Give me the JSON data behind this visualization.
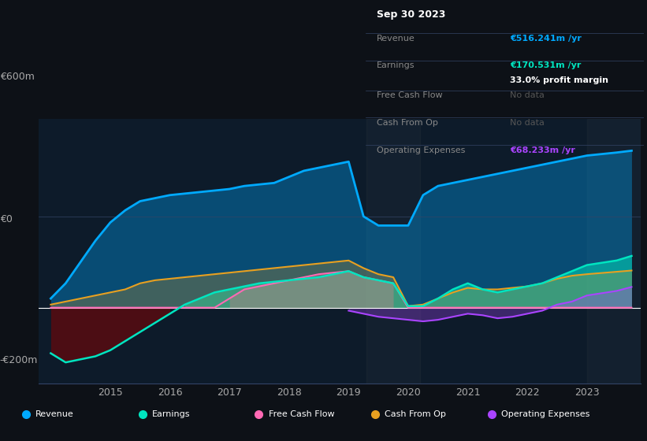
{
  "bg_color": "#0d1117",
  "plot_bg_color": "#0d1b2a",
  "title": "Sep 30 2023",
  "ylabel_600": "€600m",
  "ylabel_0": "€0",
  "ylabel_n200": "-€200m",
  "xlabel_ticks": [
    2015,
    2016,
    2017,
    2018,
    2019,
    2020,
    2021,
    2022,
    2023
  ],
  "legend_items": [
    "Revenue",
    "Earnings",
    "Free Cash Flow",
    "Cash From Op",
    "Operating Expenses"
  ],
  "legend_colors": [
    "#00aaff",
    "#00e5c0",
    "#ff69b4",
    "#e8a020",
    "#aa44ff"
  ],
  "info_box": {
    "date": "Sep 30 2023",
    "revenue_val": "€516.241m /yr",
    "revenue_color": "#00aaff",
    "earnings_val": "€170.531m /yr",
    "earnings_color": "#00e5c0",
    "profit_margin": "33.0% profit margin",
    "free_cash_flow": "No data",
    "cash_from_op": "No data",
    "op_expenses_val": "€68.233m /yr",
    "op_expenses_color": "#aa44ff"
  },
  "years": [
    2014.0,
    2014.25,
    2014.5,
    2014.75,
    2015.0,
    2015.25,
    2015.5,
    2015.75,
    2016.0,
    2016.25,
    2016.5,
    2016.75,
    2017.0,
    2017.25,
    2017.5,
    2017.75,
    2018.0,
    2018.25,
    2018.5,
    2018.75,
    2019.0,
    2019.25,
    2019.5,
    2019.75,
    2020.0,
    2020.25,
    2020.5,
    2020.75,
    2021.0,
    2021.25,
    2021.5,
    2021.75,
    2022.0,
    2022.25,
    2022.5,
    2022.75,
    2023.0,
    2023.5,
    2023.75
  ],
  "revenue": [
    30,
    80,
    150,
    220,
    280,
    320,
    350,
    360,
    370,
    375,
    380,
    385,
    390,
    400,
    405,
    410,
    430,
    450,
    460,
    470,
    480,
    300,
    270,
    270,
    270,
    370,
    400,
    410,
    420,
    430,
    440,
    450,
    460,
    470,
    480,
    490,
    500,
    510,
    516
  ],
  "earnings": [
    -150,
    -180,
    -170,
    -160,
    -140,
    -110,
    -80,
    -50,
    -20,
    10,
    30,
    50,
    60,
    70,
    80,
    85,
    90,
    95,
    100,
    110,
    120,
    100,
    90,
    80,
    5,
    5,
    30,
    60,
    80,
    60,
    50,
    60,
    70,
    80,
    100,
    120,
    140,
    155,
    170
  ],
  "free_cash_flow": [
    0,
    0,
    0,
    0,
    0,
    0,
    0,
    0,
    0,
    0,
    0,
    0,
    30,
    60,
    70,
    80,
    90,
    100,
    110,
    115,
    120,
    100,
    90,
    80,
    0,
    0,
    0,
    0,
    0,
    0,
    0,
    0,
    0,
    0,
    0,
    0,
    0,
    0,
    0
  ],
  "cash_from_op": [
    10,
    20,
    30,
    40,
    50,
    60,
    80,
    90,
    95,
    100,
    105,
    110,
    115,
    120,
    125,
    130,
    135,
    140,
    145,
    150,
    155,
    130,
    110,
    100,
    5,
    10,
    30,
    50,
    65,
    60,
    60,
    65,
    70,
    80,
    95,
    105,
    110,
    118,
    122
  ],
  "op_expenses": [
    null,
    null,
    null,
    null,
    null,
    null,
    null,
    null,
    null,
    null,
    null,
    null,
    null,
    null,
    null,
    null,
    null,
    null,
    null,
    null,
    -10,
    -20,
    -30,
    -35,
    -40,
    -45,
    -40,
    -30,
    -20,
    -25,
    -35,
    -30,
    -20,
    -10,
    10,
    20,
    40,
    55,
    68
  ]
}
